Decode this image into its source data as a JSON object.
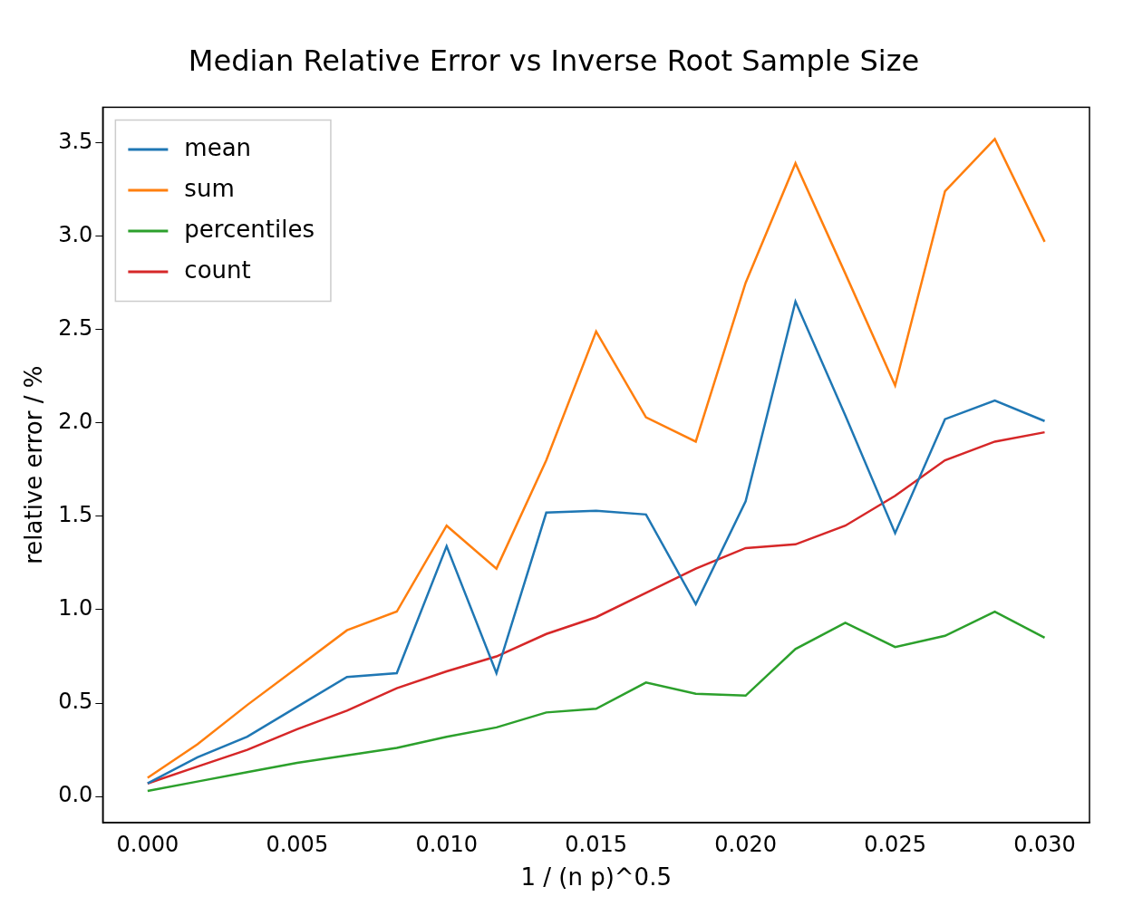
{
  "chart_data": {
    "type": "line",
    "title": "Median Relative Error vs Inverse Root Sample Size",
    "x_label": "1 / (n p)^0.5",
    "y_label": "relative error / %",
    "x": [
      0,
      0.001667,
      0.003333,
      0.005,
      0.006667,
      0.008333,
      0.01,
      0.011667,
      0.013333,
      0.015,
      0.016667,
      0.018333,
      0.02,
      0.021667,
      0.023333,
      0.025,
      0.026667,
      0.028333,
      0.03
    ],
    "series": [
      {
        "name": "mean",
        "color": "#1f77b4",
        "values": [
          0.07,
          0.21,
          0.32,
          0.48,
          0.64,
          0.66,
          1.34,
          0.66,
          1.52,
          1.53,
          1.51,
          1.03,
          1.58,
          2.65,
          2.04,
          1.41,
          2.02,
          2.12,
          2.01
        ]
      },
      {
        "name": "sum",
        "color": "#ff7f0e",
        "values": [
          0.1,
          0.28,
          0.49,
          0.69,
          0.89,
          0.99,
          1.45,
          1.22,
          1.8,
          2.49,
          2.03,
          1.9,
          2.75,
          3.39,
          2.8,
          2.2,
          3.24,
          3.52,
          2.97
        ]
      },
      {
        "name": "percentiles",
        "color": "#2ca02c",
        "values": [
          0.03,
          0.08,
          0.13,
          0.18,
          0.22,
          0.26,
          0.32,
          0.37,
          0.45,
          0.47,
          0.61,
          0.55,
          0.54,
          0.79,
          0.93,
          0.8,
          0.86,
          0.99,
          0.85
        ]
      },
      {
        "name": "count",
        "color": "#d62728",
        "values": [
          0.07,
          0.16,
          0.25,
          0.36,
          0.46,
          0.58,
          0.67,
          0.75,
          0.87,
          0.96,
          1.09,
          1.22,
          1.33,
          1.35,
          1.45,
          1.61,
          1.8,
          1.9,
          1.95
        ]
      }
    ],
    "xlim": [
      -0.0015,
      0.0315
    ],
    "xticks": [
      {
        "value": 0,
        "label": "0.000"
      },
      {
        "value": 0.005,
        "label": "0.005"
      },
      {
        "value": 0.01,
        "label": "0.010"
      },
      {
        "value": 0.015,
        "label": "0.015"
      },
      {
        "value": 0.02,
        "label": "0.020"
      },
      {
        "value": 0.025,
        "label": "0.025"
      },
      {
        "value": 0.03,
        "label": "0.030"
      }
    ],
    "ylim": [
      -0.14,
      3.69
    ],
    "yticks": [
      {
        "value": 0,
        "label": "0.0"
      },
      {
        "value": 0.5,
        "label": "0.5"
      },
      {
        "value": 1,
        "label": "1.0"
      },
      {
        "value": 1.5,
        "label": "1.5"
      },
      {
        "value": 2,
        "label": "2.0"
      },
      {
        "value": 2.5,
        "label": "2.5"
      },
      {
        "value": 3,
        "label": "3.0"
      },
      {
        "value": 3.5,
        "label": "3.5"
      }
    ],
    "grid": false,
    "legend": "upper left"
  }
}
